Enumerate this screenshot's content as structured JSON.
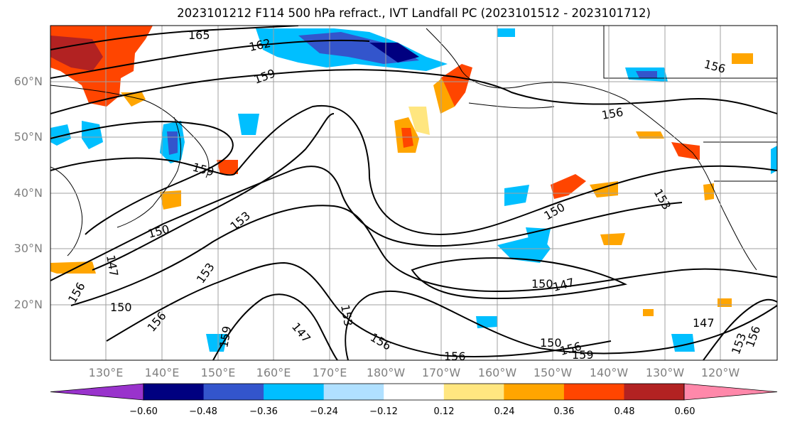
{
  "title": "2023101212 F114 500 hPa refract., IVT Landfall PC (2023101512 - 2023101712)",
  "latitude_labels": [
    "60°N",
    "50°N",
    "40°N",
    "30°N",
    "20°N"
  ],
  "longitude_labels": [
    "130°E",
    "140°E",
    "150°E",
    "160°E",
    "170°E",
    "180°W",
    "170°W",
    "160°W",
    "150°W",
    "140°W",
    "130°W",
    "120°W"
  ],
  "contour_labels": [
    "165",
    "162",
    "159",
    "156",
    "159",
    "150",
    "153",
    "147",
    "156",
    "150",
    "153",
    "156",
    "159",
    "147",
    "153",
    "156",
    "150",
    "147",
    "156",
    "159",
    "156",
    "147",
    "150",
    "153",
    "156",
    "153",
    "156",
    "150"
  ],
  "colorbar": {
    "tick_labels": [
      "−0.60",
      "−0.48",
      "−0.36",
      "−0.24",
      "−0.12",
      "0.12",
      "0.24",
      "0.36",
      "0.48",
      "0.60"
    ],
    "colors": [
      "#9933cc",
      "#000080",
      "#3355cc",
      "#00bfff",
      "#b0e0ff",
      "#ffffff",
      "#ffe680",
      "#ffa500",
      "#ff4500",
      "#b22222",
      "#ff88aa"
    ]
  },
  "map_colors": {
    "land_outline": "#000000",
    "grid": "#a0a0a0",
    "contour": "#000000"
  }
}
